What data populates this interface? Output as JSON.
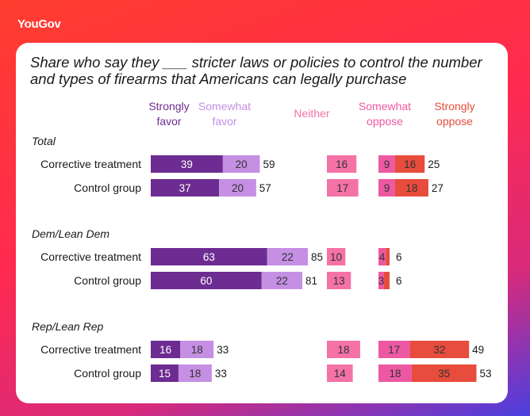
{
  "brand": {
    "logo_text": "YouGov"
  },
  "chart_data": {
    "type": "bar",
    "title": "Share who say they ___ stricter laws or policies to control the number and types of firearms that Americans can legally purchase",
    "response_columns": [
      {
        "key": "strongly_favor",
        "label_l1": "Strongly",
        "label_l2": "favor",
        "color": "#6d2c91"
      },
      {
        "key": "somewhat_favor",
        "label_l1": "Somewhat",
        "label_l2": "favor",
        "color": "#c58fe4"
      },
      {
        "key": "neither",
        "label_l1": "Neither",
        "label_l2": "",
        "color": "#f472a6"
      },
      {
        "key": "somewhat_oppose",
        "label_l1": "Somewhat",
        "label_l2": "oppose",
        "color": "#ec59a2"
      },
      {
        "key": "strongly_oppose",
        "label_l1": "Strongly",
        "label_l2": "oppose",
        "color": "#e74c3c"
      }
    ],
    "sections": [
      {
        "name": "Total",
        "rows": [
          {
            "label": "Corrective treatment",
            "strongly_favor": 39,
            "somewhat_favor": 20,
            "favor_total": 59,
            "neither": 16,
            "somewhat_oppose": 9,
            "strongly_oppose": 16,
            "oppose_total": 25
          },
          {
            "label": "Control group",
            "strongly_favor": 37,
            "somewhat_favor": 20,
            "favor_total": 57,
            "neither": 17,
            "somewhat_oppose": 9,
            "strongly_oppose": 18,
            "oppose_total": 27
          }
        ]
      },
      {
        "name": "Dem/Lean Dem",
        "rows": [
          {
            "label": "Corrective treatment",
            "strongly_favor": 63,
            "somewhat_favor": 22,
            "favor_total": 85,
            "neither": 10,
            "somewhat_oppose": 4,
            "strongly_oppose": 2,
            "oppose_total": 6
          },
          {
            "label": "Control group",
            "strongly_favor": 60,
            "somewhat_favor": 22,
            "favor_total": 81,
            "neither": 13,
            "somewhat_oppose": 3,
            "strongly_oppose": 3,
            "oppose_total": 6
          }
        ]
      },
      {
        "name": "Rep/Lean Rep",
        "rows": [
          {
            "label": "Corrective treatment",
            "strongly_favor": 16,
            "somewhat_favor": 18,
            "favor_total": 33,
            "neither": 18,
            "somewhat_oppose": 17,
            "strongly_oppose": 32,
            "oppose_total": 49
          },
          {
            "label": "Control group",
            "strongly_favor": 15,
            "somewhat_favor": 18,
            "favor_total": 33,
            "neither": 14,
            "somewhat_oppose": 18,
            "strongly_oppose": 35,
            "oppose_total": 53
          }
        ]
      }
    ]
  }
}
